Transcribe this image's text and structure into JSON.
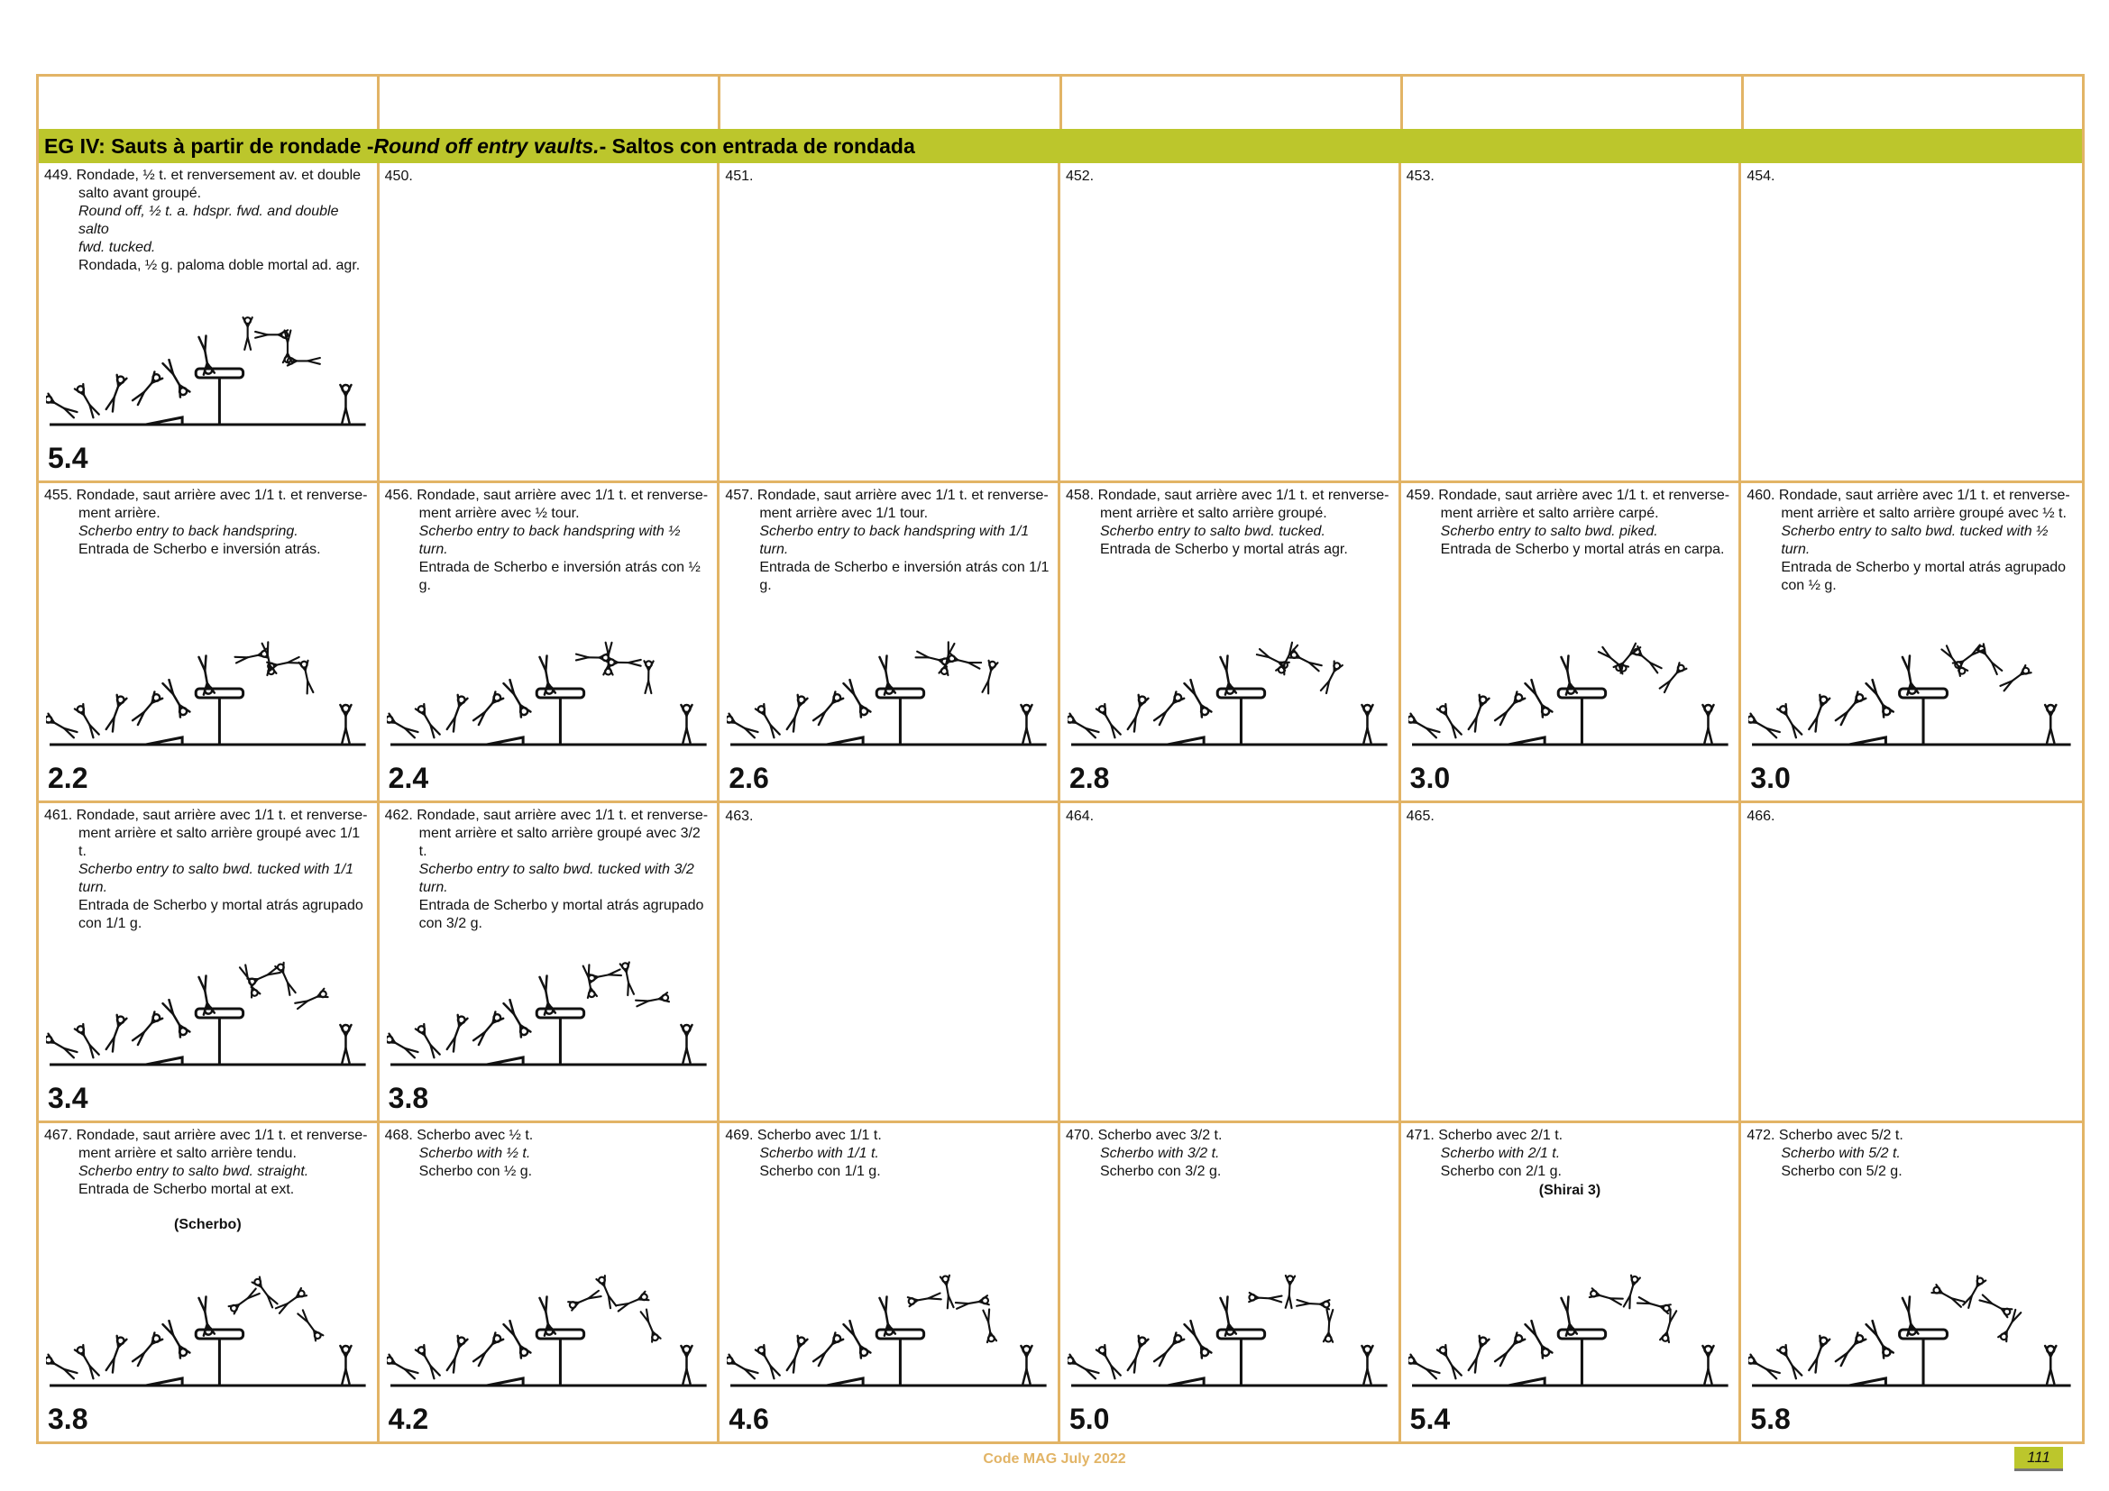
{
  "group_title_prefix": "EG IV:  Sauts à partir de rondade - ",
  "group_title_en": "Round off entry vaults.",
  "group_title_es": "- Saltos con entrada de rondada",
  "elements": [
    {
      "num": "449.",
      "lines": [
        "Rondade, ½ t. et renversement av. et double",
        "salto avant groupé."
      ],
      "en": [
        "Round off, ½ t. a. hdspr. fwd. and double salto",
        "fwd. tucked."
      ],
      "es": [
        "Rondada, ½ g. paloma doble mortal ad. agr."
      ],
      "value": "5.4"
    },
    {
      "num": "450.",
      "value": ""
    },
    {
      "num": "451.",
      "value": ""
    },
    {
      "num": "452.",
      "value": ""
    },
    {
      "num": "453.",
      "value": ""
    },
    {
      "num": "454.",
      "value": ""
    },
    {
      "num": "455.",
      "lines": [
        "Rondade, saut arrière avec 1/1 t. et renverse-",
        "ment arrière."
      ],
      "en": [
        "Scherbo entry to back handspring."
      ],
      "es": [
        "Entrada de Scherbo e inversión atrás."
      ],
      "value": "2.2"
    },
    {
      "num": "456.",
      "lines": [
        "Rondade, saut arrière avec 1/1 t. et renverse-",
        "ment arrière avec ½ tour."
      ],
      "en": [
        "Scherbo entry to back handspring with ½",
        "turn."
      ],
      "es": [
        "Entrada de Scherbo e inversión atrás con ½ g."
      ],
      "value": "2.4"
    },
    {
      "num": "457.",
      "lines": [
        "Rondade, saut arrière avec 1/1 t. et renverse-",
        "ment arrière avec 1/1 tour."
      ],
      "en": [
        "Scherbo entry to back handspring with 1/1",
        "turn."
      ],
      "es": [
        "Entrada de Scherbo e inversión atrás con 1/1 g."
      ],
      "value": "2.6"
    },
    {
      "num": "458.",
      "lines": [
        "Rondade, saut arrière avec 1/1 t. et renverse-",
        "ment arrière et salto arrière groupé."
      ],
      "en": [
        "Scherbo entry to salto bwd. tucked."
      ],
      "es": [
        "Entrada de Scherbo y mortal atrás agr."
      ],
      "value": "2.8"
    },
    {
      "num": "459.",
      "lines": [
        "Rondade, saut arrière avec 1/1 t. et renverse-",
        "ment arrière et salto arrière carpé."
      ],
      "en": [
        "Scherbo entry to salto bwd. piked."
      ],
      "es": [
        "Entrada de Scherbo y mortal atrás en carpa."
      ],
      "value": "3.0"
    },
    {
      "num": "460.",
      "lines": [
        "Rondade, saut arrière avec 1/1 t. et renverse-",
        "ment arrière et salto arrière groupé avec ½ t."
      ],
      "en": [
        "Scherbo entry to salto bwd. tucked with ½ turn."
      ],
      "es": [
        "Entrada de Scherbo y mortal atrás agrupado",
        "con ½ g."
      ],
      "value": "3.0"
    },
    {
      "num": "461.",
      "lines": [
        "Rondade, saut arrière avec 1/1 t. et renverse-",
        "ment arrière et salto arrière groupé avec 1/1 t."
      ],
      "en": [
        "Scherbo entry to salto bwd. tucked with 1/1",
        "turn."
      ],
      "es": [
        "Entrada de Scherbo y mortal atrás agrupado",
        "con 1/1 g."
      ],
      "value": "3.4"
    },
    {
      "num": "462.",
      "lines": [
        "Rondade, saut arrière avec 1/1 t. et renverse-",
        "ment arrière et salto arrière groupé avec 3/2 t."
      ],
      "en": [
        "Scherbo entry to salto bwd. tucked with 3/2",
        "turn."
      ],
      "es": [
        "Entrada de Scherbo y mortal atrás agrupado",
        "con 3/2 g."
      ],
      "value": "3.8"
    },
    {
      "num": "463.",
      "value": ""
    },
    {
      "num": "464.",
      "value": ""
    },
    {
      "num": "465.",
      "value": ""
    },
    {
      "num": "466.",
      "value": ""
    },
    {
      "num": "467.",
      "lines": [
        "Rondade, saut arrière avec 1/1 t. et renverse-",
        "ment arrière et salto arrière tendu."
      ],
      "en": [
        "Scherbo entry to salto bwd. straight."
      ],
      "es": [
        "Entrada de Scherbo mortal at ext."
      ],
      "note": "(Scherbo)",
      "value": "3.8"
    },
    {
      "num": "468.",
      "lines": [
        "Scherbo avec ½ t."
      ],
      "en": [
        "Scherbo with ½ t."
      ],
      "es": [
        "Scherbo con ½ g."
      ],
      "value": "4.2"
    },
    {
      "num": "469.",
      "lines": [
        "Scherbo avec 1/1 t."
      ],
      "en": [
        "Scherbo with 1/1 t."
      ],
      "es": [
        "Scherbo con 1/1 g."
      ],
      "value": "4.6"
    },
    {
      "num": "470.",
      "lines": [
        "Scherbo avec 3/2 t."
      ],
      "en": [
        "Scherbo with 3/2 t."
      ],
      "es": [
        "Scherbo con 3/2 g."
      ],
      "value": "5.0"
    },
    {
      "num": "471.",
      "lines": [
        "Scherbo avec 2/1 t."
      ],
      "en": [
        "Scherbo with 2/1 t."
      ],
      "es": [
        "Scherbo con 2/1 g."
      ],
      "note": "(Shirai 3)",
      "value": "5.4"
    },
    {
      "num": "472.",
      "lines": [
        "Scherbo avec 5/2 t."
      ],
      "en": [
        "Scherbo with 5/2 t."
      ],
      "es": [
        "Scherbo con 5/2 g."
      ],
      "value": "5.8"
    }
  ],
  "footer": "Code MAG July 2022",
  "page_number": "111",
  "icons": {
    "illustration": "vault-sequence-illustration"
  },
  "colors": {
    "border": "#e2b466",
    "group_bar": "#bcc62c"
  }
}
